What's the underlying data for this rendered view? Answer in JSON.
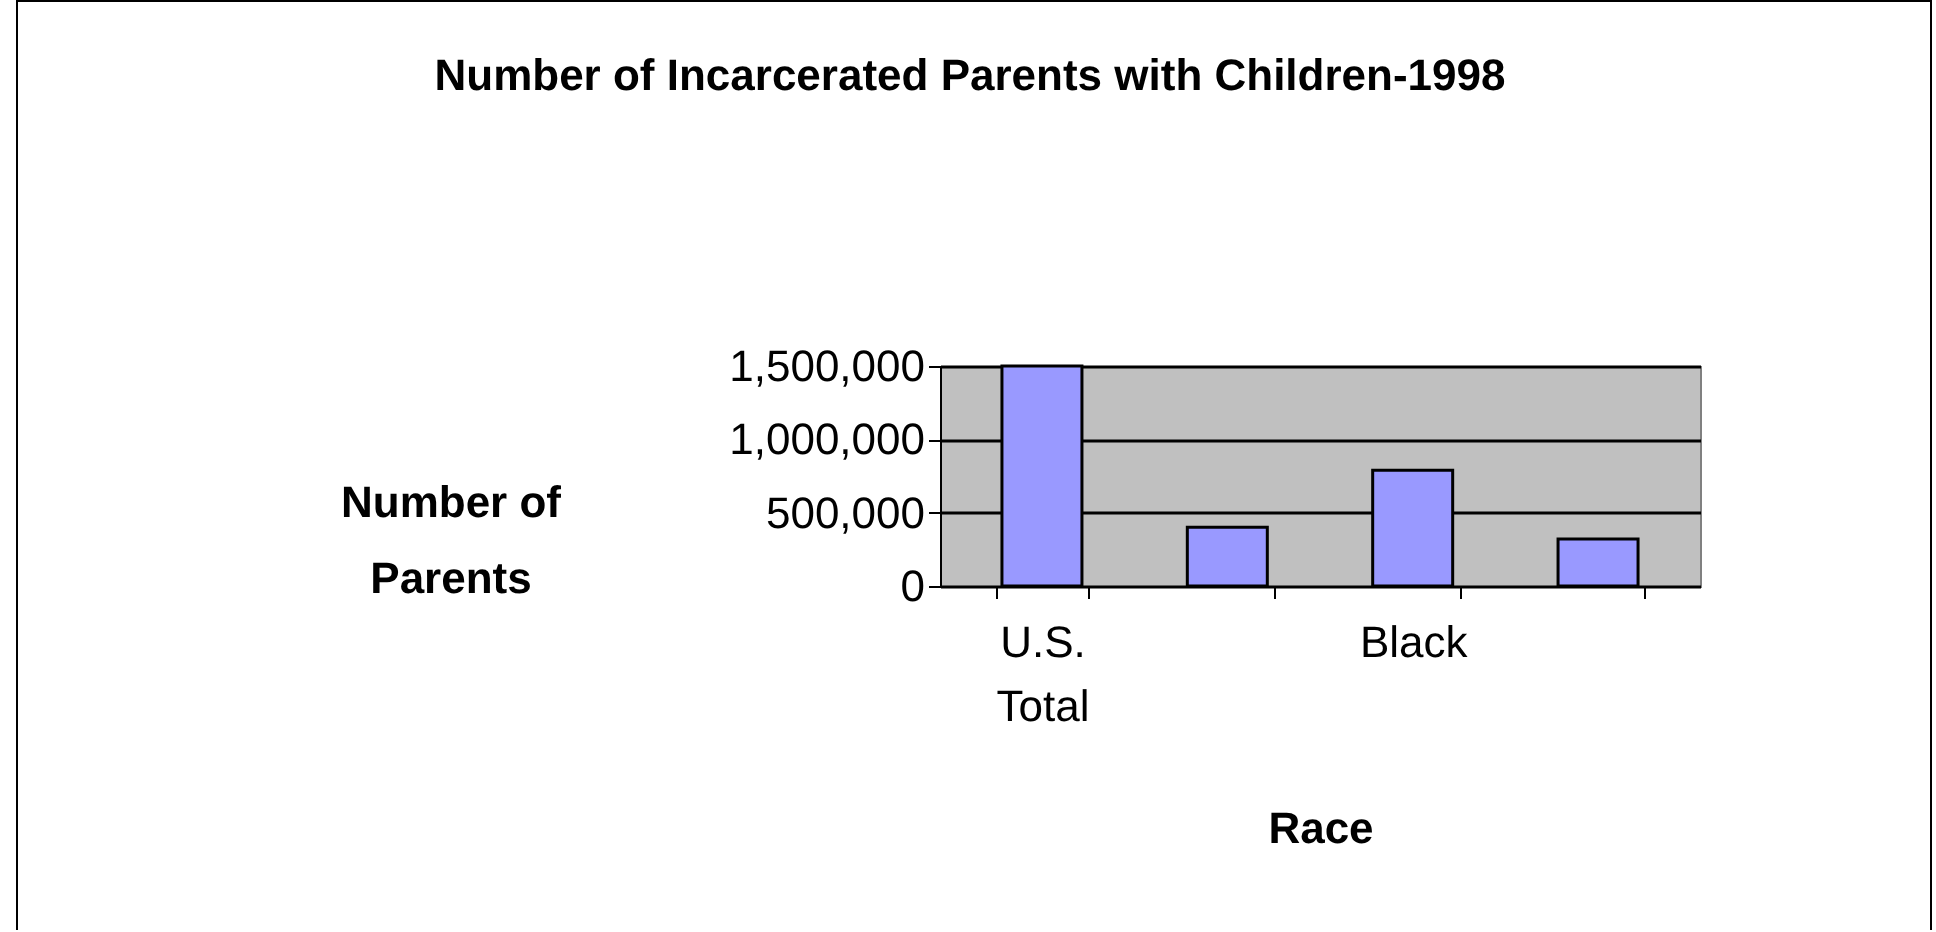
{
  "chart_data": {
    "type": "bar",
    "title": "Number of Incarcerated Parents with Children-1998",
    "xlabel": "Race",
    "ylabel": "Number of Parents",
    "categories": [
      "U.S. Total",
      null,
      "Black",
      null
    ],
    "values": [
      1500000,
      400000,
      790000,
      320000
    ],
    "color": "#9999ff",
    "ylim": [
      0,
      1500000
    ],
    "yticks": [
      {
        "value": 0,
        "label": "0"
      },
      {
        "value": 500000,
        "label": "500,000"
      },
      {
        "value": 1000000,
        "label": "1,000,000"
      },
      {
        "value": 1500000,
        "label": "1,500,000"
      }
    ],
    "grid": "y"
  }
}
